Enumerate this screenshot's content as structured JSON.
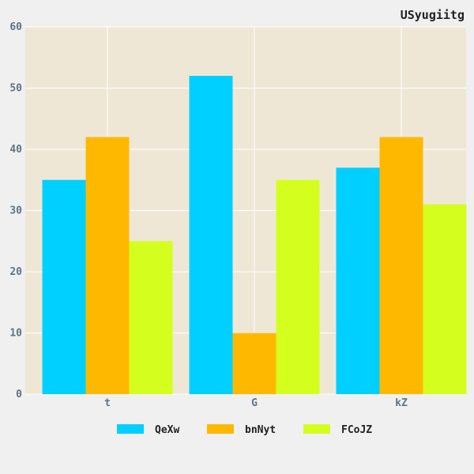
{
  "chart_data": {
    "type": "bar",
    "title": "USyugiitg",
    "xlabel": "",
    "ylabel": "",
    "categories": [
      "t",
      "G",
      "kZ"
    ],
    "series": [
      {
        "name": "QeXw",
        "values": [
          35,
          52,
          37
        ],
        "color": "#00d0ff"
      },
      {
        "name": "bnNyt",
        "values": [
          42,
          10,
          42
        ],
        "color": "#ffb800"
      },
      {
        "name": "FCoJZ",
        "values": [
          25,
          35,
          31
        ],
        "color": "#d4ff1e"
      }
    ],
    "ylim": [
      0,
      60
    ],
    "yticks": [
      0,
      10,
      20,
      30,
      40,
      50,
      60
    ],
    "grid": true,
    "legend_position": "bottom",
    "colors": {
      "plot_background": "#efe7d6",
      "page_background": "#f0f0f0",
      "grid": "#ffffff",
      "tick_text": "#5f7583"
    }
  }
}
